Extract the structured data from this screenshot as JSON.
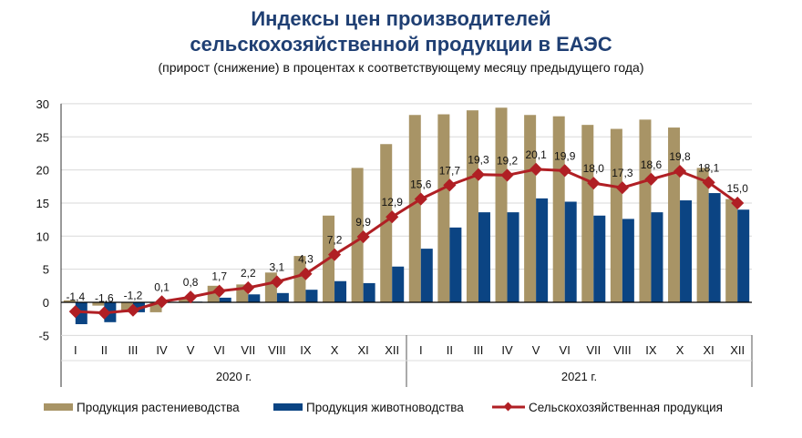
{
  "chart_data": {
    "type": "bar+line",
    "title_line1": "Индексы цен производителей",
    "title_line2": "сельскохозяйственной продукции в ЕАЭС",
    "subtitle": "(прирост (снижение) в процентах к соответствующему месяцу предыдущего года)",
    "ylim": [
      -5,
      30
    ],
    "yticks": [
      "-5",
      "0",
      "5",
      "10",
      "15",
      "20",
      "25",
      "30"
    ],
    "yticks_values": [
      -5,
      0,
      5,
      10,
      15,
      20,
      25,
      30
    ],
    "categories": [
      "I",
      "II",
      "III",
      "IV",
      "V",
      "VI",
      "VII",
      "VIII",
      "IX",
      "X",
      "XI",
      "XII",
      "I",
      "II",
      "III",
      "IV",
      "V",
      "VI",
      "VII",
      "VIII",
      "IX",
      "X",
      "XI",
      "XII"
    ],
    "years": [
      "2020 г.",
      "2021 г."
    ],
    "series": [
      {
        "name": "Продукция растениеводства",
        "type": "bar",
        "color": "#a89466",
        "values": [
          0.3,
          -0.5,
          -1.5,
          -1.5,
          0.7,
          2.5,
          2.7,
          4.5,
          7.0,
          13.1,
          20.3,
          23.9,
          28.3,
          28.4,
          29.0,
          29.4,
          28.3,
          28.1,
          26.8,
          26.2,
          27.6,
          26.4,
          20.3,
          15.6
        ]
      },
      {
        "name": "Продукция животноводства",
        "type": "bar",
        "color": "#0b4483",
        "values": [
          -3.3,
          -3.0,
          -1.5,
          0.0,
          0.1,
          0.7,
          1.2,
          1.4,
          1.9,
          3.2,
          2.9,
          5.4,
          8.1,
          11.3,
          13.6,
          13.6,
          15.7,
          15.2,
          13.1,
          12.6,
          13.6,
          15.4,
          16.5,
          14.0
        ]
      },
      {
        "name": "Сельскохозяйственная продукция",
        "type": "line",
        "color": "#b01f24",
        "values": [
          -1.4,
          -1.6,
          -1.2,
          0.1,
          0.8,
          1.7,
          2.2,
          3.1,
          4.3,
          7.2,
          9.9,
          12.9,
          15.6,
          17.7,
          19.3,
          19.2,
          20.1,
          19.9,
          18.0,
          17.3,
          18.6,
          19.8,
          18.1,
          15.0
        ],
        "labels": [
          "-1,4",
          "-1,6",
          "-1,2",
          "0,1",
          "0,8",
          "1,7",
          "2,2",
          "3,1",
          "4,3",
          "7,2",
          "9,9",
          "12,9",
          "15,6",
          "17,7",
          "19,3",
          "19,2",
          "20,1",
          "19,9",
          "18,0",
          "17,3",
          "18,6",
          "19,8",
          "18,1",
          "15,0"
        ]
      }
    ],
    "legend_position": "bottom",
    "grid": true
  }
}
